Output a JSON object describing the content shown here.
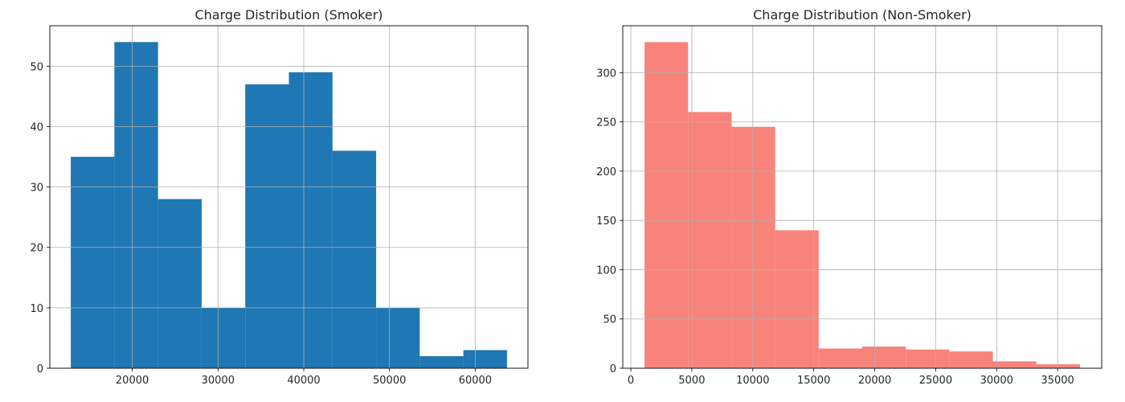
{
  "chart_data": [
    {
      "type": "bar",
      "title": "Charge Distribution (Smoker)",
      "xlabel": "",
      "ylabel": "",
      "color": "#1f77b4",
      "grid": true,
      "bins": [
        {
          "start": 12829,
          "end": 17917,
          "count": 35
        },
        {
          "start": 17917,
          "end": 23004,
          "count": 54
        },
        {
          "start": 23004,
          "end": 28092,
          "count": 28
        },
        {
          "start": 28092,
          "end": 33179,
          "count": 10
        },
        {
          "start": 33179,
          "end": 38267,
          "count": 47
        },
        {
          "start": 38267,
          "end": 43354,
          "count": 49
        },
        {
          "start": 43354,
          "end": 48442,
          "count": 36
        },
        {
          "start": 48442,
          "end": 53529,
          "count": 10
        },
        {
          "start": 53529,
          "end": 58617,
          "count": 2
        },
        {
          "start": 58617,
          "end": 63704,
          "count": 3
        }
      ],
      "xlim": [
        10385,
        66148
      ],
      "ylim": [
        0,
        56.7
      ],
      "xticks": [
        20000,
        30000,
        40000,
        50000,
        60000
      ],
      "yticks": [
        0,
        10,
        20,
        30,
        40,
        50
      ]
    },
    {
      "type": "bar",
      "title": "Charge Distribution (Non-Smoker)",
      "xlabel": "",
      "ylabel": "",
      "color": "#f8837a",
      "grid": true,
      "bins": [
        {
          "start": 1122,
          "end": 4693,
          "count": 331
        },
        {
          "start": 4693,
          "end": 8263,
          "count": 260
        },
        {
          "start": 8263,
          "end": 11834,
          "count": 245
        },
        {
          "start": 11834,
          "end": 15405,
          "count": 140
        },
        {
          "start": 15405,
          "end": 18975,
          "count": 20
        },
        {
          "start": 18975,
          "end": 22546,
          "count": 22
        },
        {
          "start": 22546,
          "end": 26117,
          "count": 19
        },
        {
          "start": 26117,
          "end": 29687,
          "count": 17
        },
        {
          "start": 29687,
          "end": 33258,
          "count": 7
        },
        {
          "start": 33258,
          "end": 36829,
          "count": 4
        }
      ],
      "xlim": [
        -663,
        38614
      ],
      "ylim": [
        0,
        347.6
      ],
      "xticks": [
        0,
        5000,
        10000,
        15000,
        20000,
        25000,
        30000,
        35000
      ],
      "yticks": [
        0,
        50,
        100,
        150,
        200,
        250,
        300
      ]
    }
  ]
}
